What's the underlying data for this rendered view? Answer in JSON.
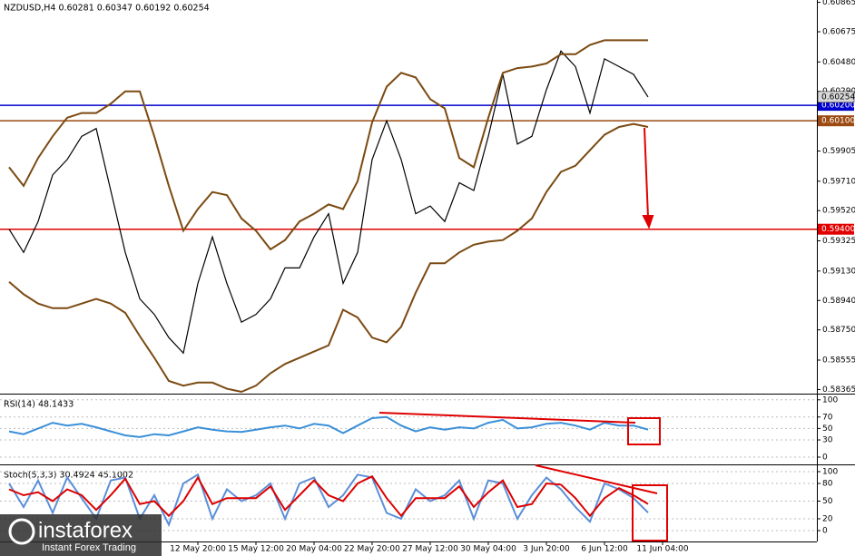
{
  "chart_data": [
    {
      "type": "line",
      "title": "NZDUSD,H4 0.60281 0.60347 0.60192 0.60254",
      "x": [
        null,
        null,
        null,
        null,
        null,
        null,
        null,
        null,
        null,
        null,
        null,
        null,
        null,
        "12 May 20:00",
        null,
        null,
        null,
        "15 May 12:00",
        null,
        null,
        null,
        "20 May 04:00",
        null,
        null,
        null,
        "22 May 20:00",
        null,
        null,
        null,
        "27 May 12:00",
        null,
        null,
        null,
        "30 May 04:00",
        null,
        null,
        null,
        "3 Jun 20:00",
        null,
        null,
        null,
        "6 Jun 12:00",
        null,
        null,
        null,
        "11 Jun 04:00"
      ],
      "series": [
        {
          "color": "#000000",
          "values": [
            0.594,
            0.5925,
            0.5945,
            0.5975,
            0.5985,
            0.6,
            0.6005,
            0.5965,
            0.5925,
            0.5895,
            0.5885,
            0.587,
            0.586,
            0.5905,
            0.5935,
            0.5905,
            0.588,
            0.5885,
            0.5895,
            0.5915,
            0.5915,
            0.5935,
            0.595,
            0.5905,
            0.5925,
            0.5985,
            0.601,
            0.5985,
            0.595,
            0.5955,
            0.5945,
            0.597,
            0.5965,
            0.6,
            0.604,
            0.5995,
            0.6,
            0.603,
            0.6055,
            0.6045,
            0.6015,
            0.605,
            0.6045,
            0.604,
            0.60254,
            null
          ]
        },
        {
          "color": "#7b4a12",
          "values": [
            0.598,
            0.5968,
            0.5986,
            0.6,
            0.6012,
            0.6015,
            0.6015,
            0.6021,
            0.6029,
            0.6029,
            0.6,
            0.5968,
            0.5939,
            0.5953,
            0.5964,
            0.5962,
            0.5947,
            0.5939,
            0.5927,
            0.5933,
            0.5945,
            0.595,
            0.5956,
            0.5953,
            0.5971,
            0.6009,
            0.6032,
            0.6041,
            0.6038,
            0.6024,
            0.6018,
            0.5986,
            0.598,
            0.6012,
            0.6041,
            0.6044,
            0.6045,
            0.6047,
            0.6053,
            0.6053,
            0.6059,
            0.6062,
            0.6062,
            0.6062,
            0.6062,
            null
          ]
        },
        {
          "color": "#7b4a12",
          "values": [
            0.5906,
            0.5898,
            0.5892,
            0.5889,
            0.5889,
            0.5892,
            0.5895,
            0.5892,
            0.5886,
            0.5871,
            0.5857,
            0.5842,
            0.5839,
            0.5841,
            0.5841,
            0.5837,
            0.5835,
            0.5839,
            0.5847,
            0.5853,
            0.5857,
            0.5861,
            0.5865,
            0.5888,
            0.5883,
            0.587,
            0.5867,
            0.5877,
            0.5899,
            0.5918,
            0.5918,
            0.5925,
            0.593,
            0.5932,
            0.5933,
            0.5939,
            0.5947,
            0.5964,
            0.5977,
            0.5981,
            0.5991,
            0.6001,
            0.6006,
            0.6008,
            0.6006,
            null
          ]
        }
      ],
      "ylim": [
        0.5835,
        0.6088
      ],
      "yticks": [
        0.60865,
        0.60675,
        {
          "value": 0.6048,
          "label": "0.60480"
        },
        {
          "value": 0.6029,
          "label": "0.60290"
        },
        0.59905,
        {
          "value": 0.5971,
          "label": "0.59710"
        },
        {
          "value": 0.5952,
          "label": "0.59520"
        },
        0.59325,
        {
          "value": 0.5913,
          "label": "0.59130"
        },
        {
          "value": 0.5894,
          "label": "0.58940"
        },
        {
          "value": 0.5875,
          "label": "0.58750"
        },
        0.58555,
        0.58365
      ],
      "levels": [
        {
          "value": 0.602,
          "label": "0.60200",
          "color": "#0000cc"
        },
        {
          "value": 0.601,
          "label": "0.60100",
          "color": "#9c4a12"
        },
        {
          "value": 0.594,
          "label": "0.59400",
          "color": "#e00000"
        }
      ],
      "last": 0.60254
    },
    {
      "type": "line",
      "title": "RSI(14) 48.1433",
      "series": [
        {
          "color": "#3a8fd8",
          "values": [
            45,
            40,
            50,
            60,
            55,
            58,
            52,
            45,
            38,
            35,
            40,
            38,
            45,
            52,
            48,
            45,
            44,
            48,
            52,
            55,
            50,
            58,
            55,
            42,
            55,
            68,
            70,
            55,
            45,
            52,
            48,
            52,
            50,
            60,
            65,
            50,
            52,
            58,
            60,
            55,
            48,
            60,
            55,
            55,
            48.1433,
            null
          ]
        }
      ],
      "ylim": [
        -9.5,
        106
      ],
      "yticks": [
        100,
        70,
        50,
        30,
        0
      ],
      "grid": true
    },
    {
      "type": "line",
      "title": "Stoch(5,3,3) 30.4924 45.1002",
      "series": [
        {
          "color": "#5b8fd8",
          "values": [
            80,
            40,
            85,
            30,
            90,
            55,
            20,
            85,
            90,
            20,
            60,
            10,
            80,
            95,
            20,
            70,
            50,
            60,
            80,
            20,
            80,
            90,
            40,
            60,
            95,
            90,
            30,
            20,
            70,
            50,
            60,
            85,
            20,
            85,
            80,
            20,
            60,
            90,
            70,
            40,
            15,
            80,
            70,
            55,
            30.4924,
            null
          ]
        },
        {
          "color": "#dd0000",
          "values": [
            70,
            60,
            65,
            50,
            70,
            60,
            35,
            60,
            88,
            45,
            50,
            25,
            50,
            90,
            45,
            55,
            55,
            55,
            75,
            35,
            60,
            85,
            60,
            50,
            80,
            92,
            55,
            25,
            55,
            55,
            55,
            75,
            40,
            65,
            85,
            40,
            45,
            80,
            78,
            55,
            25,
            55,
            72,
            60,
            45.1002,
            null
          ]
        }
      ],
      "ylim": [
        -18.5,
        107.7
      ],
      "yticks": [
        100,
        80,
        50,
        20,
        0
      ],
      "grid": true
    }
  ],
  "watermark": {
    "brand": "instaforex",
    "tagline": "Instant Forex Trading"
  }
}
